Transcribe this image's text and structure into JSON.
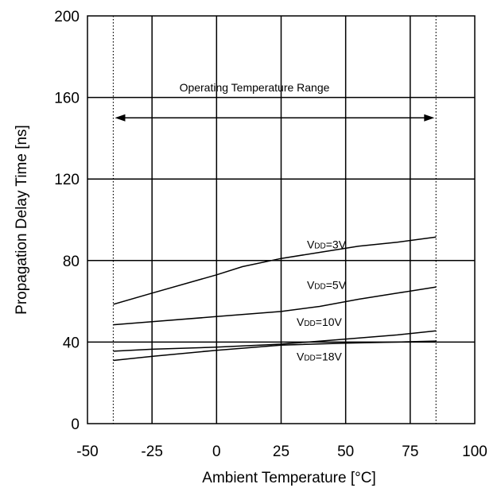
{
  "chart_data": {
    "type": "line",
    "title": "",
    "xlabel": "Ambient Temperature [°C]",
    "ylabel": "Propagation Delay Time [ns]",
    "xlim": [
      -50,
      100
    ],
    "ylim": [
      0,
      200
    ],
    "x_ticks": [
      -50,
      -25,
      0,
      25,
      50,
      75,
      100
    ],
    "y_ticks": [
      0,
      40,
      80,
      120,
      160,
      200
    ],
    "grid": true,
    "operating_range": {
      "label": "Operating Temperature Range",
      "x_min": -40,
      "x_max": 85,
      "arrow_y": 150
    },
    "series": [
      {
        "name": "VDD=3V",
        "label_main": "V",
        "label_sub": "DD",
        "label_rest": "=3V",
        "label_pos": [
          35,
          86
        ],
        "x": [
          -40,
          -25,
          0,
          10,
          25,
          40,
          55,
          70,
          85
        ],
        "y": [
          58.5,
          64,
          73,
          77,
          81,
          84,
          87,
          89,
          91.5
        ]
      },
      {
        "name": "VDD=5V",
        "label_main": "V",
        "label_sub": "DD",
        "label_rest": "=5V",
        "label_pos": [
          35,
          66
        ],
        "x": [
          -40,
          -25,
          0,
          25,
          40,
          55,
          70,
          85
        ],
        "y": [
          48.5,
          50,
          52.5,
          55,
          57.5,
          61,
          64,
          67
        ]
      },
      {
        "name": "VDD=10V",
        "label_main": "V",
        "label_sub": "DD",
        "label_rest": "=10V",
        "label_pos": [
          31,
          48
        ],
        "x": [
          -40,
          -25,
          0,
          25,
          50,
          70,
          85
        ],
        "y": [
          35.5,
          36.5,
          37.5,
          39,
          41.5,
          43.5,
          45.5
        ]
      },
      {
        "name": "VDD=18V",
        "label_main": "V",
        "label_sub": "DD",
        "label_rest": "=18V",
        "label_pos": [
          31,
          31
        ],
        "x": [
          -40,
          -25,
          0,
          25,
          50,
          70,
          85
        ],
        "y": [
          31,
          33,
          36,
          38.5,
          39.5,
          40,
          40.5
        ]
      }
    ]
  }
}
